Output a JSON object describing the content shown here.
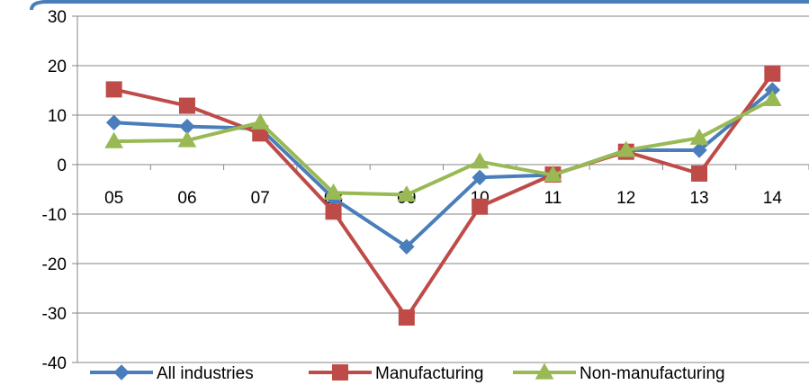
{
  "chart_data": {
    "type": "line",
    "categories": [
      "05",
      "06",
      "07",
      "08",
      "09",
      "10",
      "11",
      "12",
      "13",
      "14"
    ],
    "ylim": [
      -40,
      30
    ],
    "yticks": [
      30,
      20,
      10,
      0,
      -10,
      -20,
      -30,
      -40
    ],
    "grid": true,
    "legend": "bottom",
    "series": [
      {
        "name": "All industries",
        "color": "#4A7EBB",
        "marker": "diamond",
        "values": [
          8.5,
          7.7,
          7.3,
          -6.8,
          -16.6,
          -2.6,
          -2.1,
          2.9,
          2.9,
          15.1
        ]
      },
      {
        "name": "Manufacturing",
        "color": "#BE4B48",
        "marker": "square",
        "values": [
          15.2,
          11.9,
          6.3,
          -9.5,
          -30.9,
          -8.5,
          -2.0,
          2.6,
          -1.8,
          18.4
        ]
      },
      {
        "name": "Non-manufacturing",
        "color": "#98B954",
        "marker": "triangle",
        "values": [
          4.7,
          4.9,
          8.5,
          -5.7,
          -6.1,
          0.6,
          -2.1,
          2.9,
          5.4,
          13.2
        ]
      }
    ]
  }
}
